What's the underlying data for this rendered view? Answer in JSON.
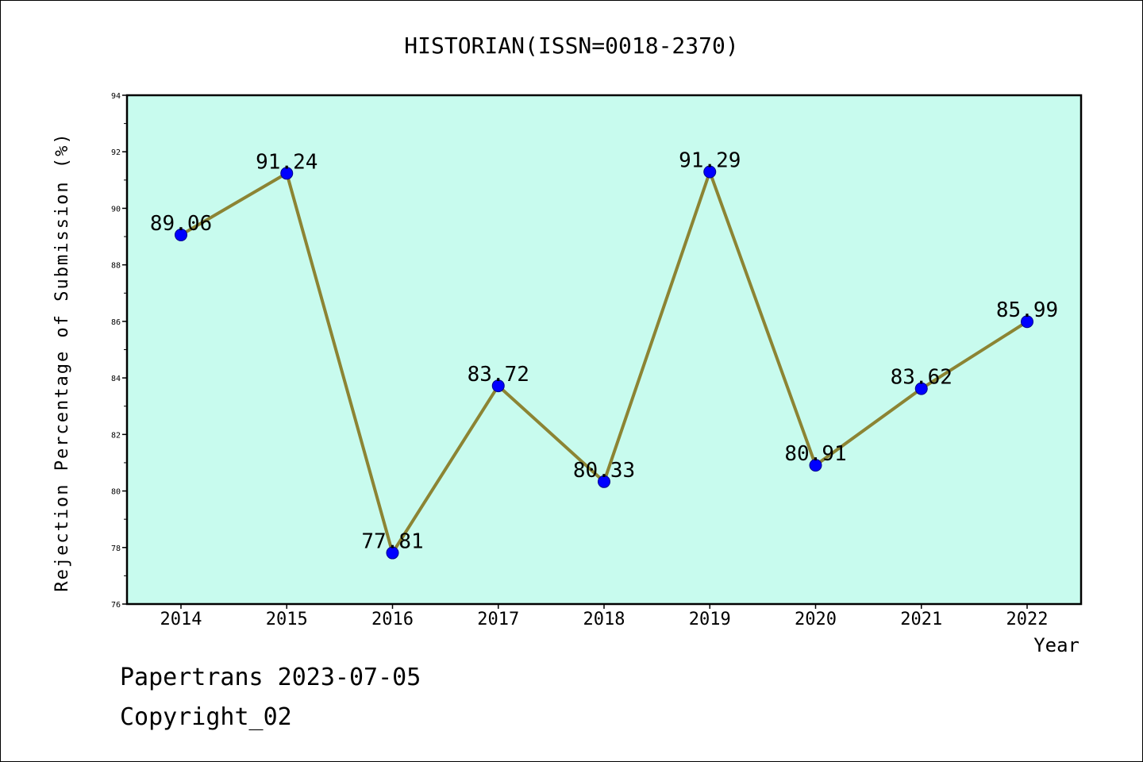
{
  "chart_data": {
    "type": "line",
    "title": "HISTORIAN(ISSN=0018-2370)",
    "xlabel": "Year",
    "ylabel": "Rejection Percentage of Submission (%)",
    "categories": [
      "2014",
      "2015",
      "2016",
      "2017",
      "2018",
      "2019",
      "2020",
      "2021",
      "2022"
    ],
    "series": [
      {
        "values": [
          89.06,
          91.24,
          77.81,
          83.72,
          80.33,
          91.29,
          80.91,
          83.62,
          85.99
        ],
        "data_labels": [
          "89.06",
          "91.24",
          "77.81",
          "83.72",
          "80.33",
          "91.29",
          "80.91",
          "83.62",
          "85.99"
        ],
        "line_color": "#8c8433",
        "marker_color": "#0000ff"
      }
    ],
    "ylim": [
      76,
      94
    ],
    "yticks": [
      "76",
      "78",
      "80",
      "82",
      "84",
      "86",
      "88",
      "90",
      "92",
      "94"
    ],
    "grid": false,
    "legend": "none",
    "plot_background": "#c8fbee"
  },
  "footer": {
    "line1": "Papertrans 2023-07-05",
    "line2": "Copyright_02"
  }
}
